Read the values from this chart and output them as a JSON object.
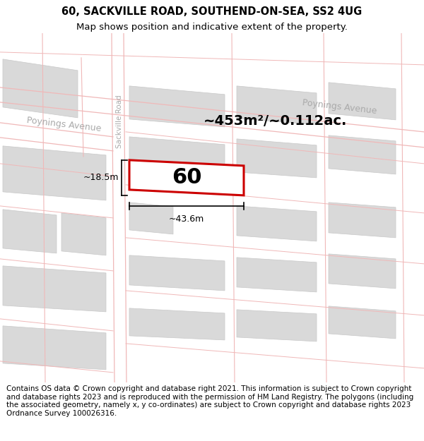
{
  "title_line1": "60, SACKVILLE ROAD, SOUTHEND-ON-SEA, SS2 4UG",
  "title_line2": "Map shows position and indicative extent of the property.",
  "footer_text": "Contains OS data © Crown copyright and database right 2021. This information is subject to Crown copyright and database rights 2023 and is reproduced with the permission of HM Land Registry. The polygons (including the associated geometry, namely x, y co-ordinates) are subject to Crown copyright and database rights 2023 Ordnance Survey 100026316.",
  "area_label": "~453m²/~0.112ac.",
  "property_number": "60",
  "dim_width": "~43.6m",
  "dim_height": "~18.5m",
  "street_label_poynings1": "Poynings Avenue",
  "street_label_poynings2": "Poynings Avenue",
  "street_label_sackville": "Sackville Road",
  "bg_color": "#f7f2f2",
  "map_bg": "#f7f2f2",
  "block_fill": "#d9d9d9",
  "block_edge": "#c8c8c8",
  "road_color": "#f0b8b8",
  "highlight_fill": "#ffffff",
  "highlight_stroke": "#cc0000",
  "title_fontsize": 10.5,
  "subtitle_fontsize": 9.5,
  "footer_fontsize": 7.5,
  "street_label_color": "#aaaaaa",
  "street_label_size": 9,
  "sackville_label_size": 7.5,
  "area_label_size": 14,
  "property_num_size": 22,
  "dim_label_size": 9
}
